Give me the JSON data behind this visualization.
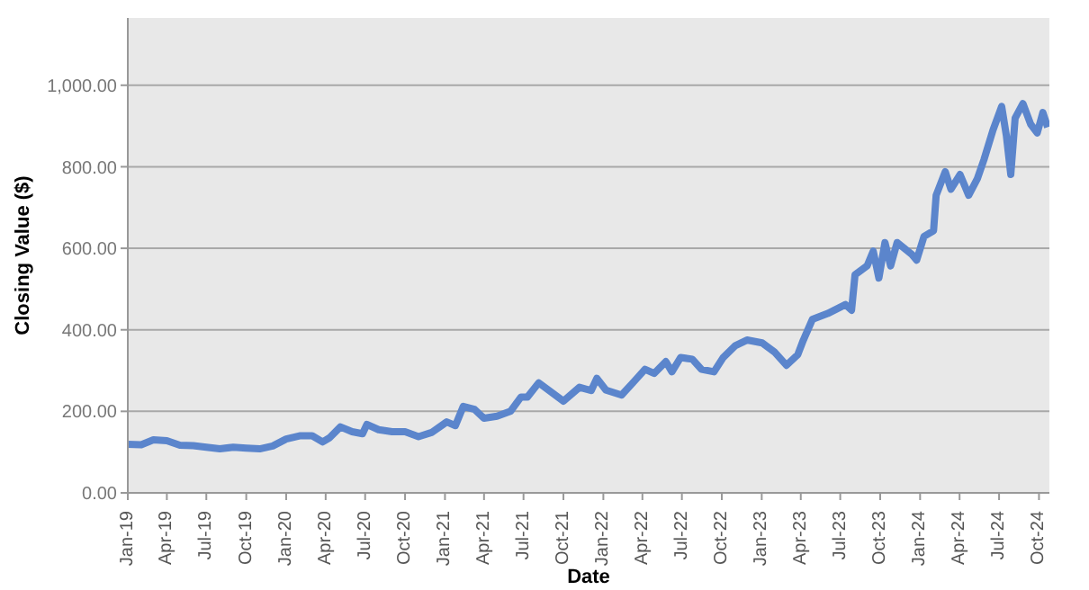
{
  "chart_data": {
    "type": "line",
    "xlabel": "Date",
    "ylabel": "Closing Value ($)",
    "x": [
      "2019-01-01",
      "2019-02-01",
      "2019-03-01",
      "2019-04-01",
      "2019-05-01",
      "2019-06-01",
      "2019-07-01",
      "2019-08-01",
      "2019-09-01",
      "2019-10-01",
      "2019-11-01",
      "2019-12-01",
      "2020-01-01",
      "2020-02-01",
      "2020-03-01",
      "2020-03-25",
      "2020-04-10",
      "2020-05-05",
      "2020-06-01",
      "2020-06-25",
      "2020-07-05",
      "2020-08-01",
      "2020-09-01",
      "2020-10-01",
      "2020-11-01",
      "2020-12-01",
      "2021-01-05",
      "2021-01-25",
      "2021-02-12",
      "2021-03-10",
      "2021-04-01",
      "2021-05-01",
      "2021-06-01",
      "2021-06-25",
      "2021-07-10",
      "2021-08-05",
      "2021-10-01",
      "2021-11-07",
      "2021-12-04",
      "2021-12-17",
      "2022-01-07",
      "2022-02-12",
      "2022-03-10",
      "2022-04-07",
      "2022-04-28",
      "2022-05-25",
      "2022-06-08",
      "2022-06-28",
      "2022-07-25",
      "2022-08-15",
      "2022-09-13",
      "2022-10-04",
      "2022-11-01",
      "2022-11-28",
      "2023-01-02",
      "2023-01-30",
      "2023-02-27",
      "2023-03-25",
      "2023-04-07",
      "2023-04-28",
      "2023-06-02",
      "2023-07-13",
      "2023-07-27",
      "2023-08-04",
      "2023-09-01",
      "2023-09-15",
      "2023-09-28",
      "2023-10-12",
      "2023-10-25",
      "2023-11-09",
      "2023-12-13",
      "2023-12-24",
      "2024-01-10",
      "2024-02-01",
      "2024-02-07",
      "2024-02-28",
      "2024-03-12",
      "2024-04-02",
      "2024-04-22",
      "2024-05-12",
      "2024-05-27",
      "2024-06-17",
      "2024-07-07",
      "2024-07-18",
      "2024-07-28",
      "2024-08-07",
      "2024-08-25",
      "2024-09-12",
      "2024-09-27",
      "2024-10-10",
      "2024-10-21"
    ],
    "series": [
      {
        "color": "#5b85cc",
        "values": [
          119,
          118,
          130,
          128,
          117,
          116,
          112,
          108,
          112,
          110,
          108,
          115,
          132,
          140,
          140,
          125,
          135,
          162,
          150,
          145,
          168,
          155,
          150,
          150,
          138,
          148,
          174,
          165,
          212,
          205,
          183,
          188,
          200,
          235,
          235,
          270,
          225,
          259,
          251,
          281,
          252,
          240,
          270,
          303,
          293,
          322,
          297,
          332,
          328,
          303,
          297,
          332,
          361,
          375,
          368,
          346,
          313,
          339,
          375,
          426,
          440,
          462,
          448,
          535,
          557,
          593,
          527,
          614,
          557,
          614,
          585,
          571,
          629,
          643,
          730,
          788,
          745,
          781,
          730,
          771,
          817,
          890,
          948,
          875,
          781,
          919,
          955,
          904,
          883,
          933,
          897
        ]
      }
    ],
    "xlim": [
      "2019-01-01",
      "2024-10-25"
    ],
    "xticks": [
      {
        "value": "2019-01-01",
        "label": "Jan-19"
      },
      {
        "value": "2019-04-01",
        "label": "Apr-19"
      },
      {
        "value": "2019-07-01",
        "label": "Jul-19"
      },
      {
        "value": "2019-10-01",
        "label": "Oct-19"
      },
      {
        "value": "2020-01-01",
        "label": "Jan-20"
      },
      {
        "value": "2020-04-01",
        "label": "Apr-20"
      },
      {
        "value": "2020-07-01",
        "label": "Jul-20"
      },
      {
        "value": "2020-10-01",
        "label": "Oct-20"
      },
      {
        "value": "2021-01-01",
        "label": "Jan-21"
      },
      {
        "value": "2021-04-01",
        "label": "Apr-21"
      },
      {
        "value": "2021-07-01",
        "label": "Jul-21"
      },
      {
        "value": "2021-10-01",
        "label": "Oct-21"
      },
      {
        "value": "2022-01-01",
        "label": "Jan-22"
      },
      {
        "value": "2022-04-01",
        "label": "Apr-22"
      },
      {
        "value": "2022-07-01",
        "label": "Jul-22"
      },
      {
        "value": "2022-10-01",
        "label": "Oct-22"
      },
      {
        "value": "2023-01-01",
        "label": "Jan-23"
      },
      {
        "value": "2023-04-01",
        "label": "Apr-23"
      },
      {
        "value": "2023-07-01",
        "label": "Jul-23"
      },
      {
        "value": "2023-10-01",
        "label": "Oct-23"
      },
      {
        "value": "2024-01-01",
        "label": "Jan-24"
      },
      {
        "value": "2024-04-01",
        "label": "Apr-24"
      },
      {
        "value": "2024-07-01",
        "label": "Jul-24"
      },
      {
        "value": "2024-10-01",
        "label": "Oct-24"
      }
    ],
    "ylim": [
      0,
      1165
    ],
    "yticks": [
      {
        "value": 0,
        "label": "0.00"
      },
      {
        "value": 200,
        "label": "200.00"
      },
      {
        "value": 400,
        "label": "400.00"
      },
      {
        "value": 600,
        "label": "600.00"
      },
      {
        "value": 800,
        "label": "800.00"
      },
      {
        "value": 1000,
        "label": "1,000.00"
      }
    ],
    "grid": "y",
    "legend": false,
    "marker": "none",
    "line_style": "solid"
  }
}
